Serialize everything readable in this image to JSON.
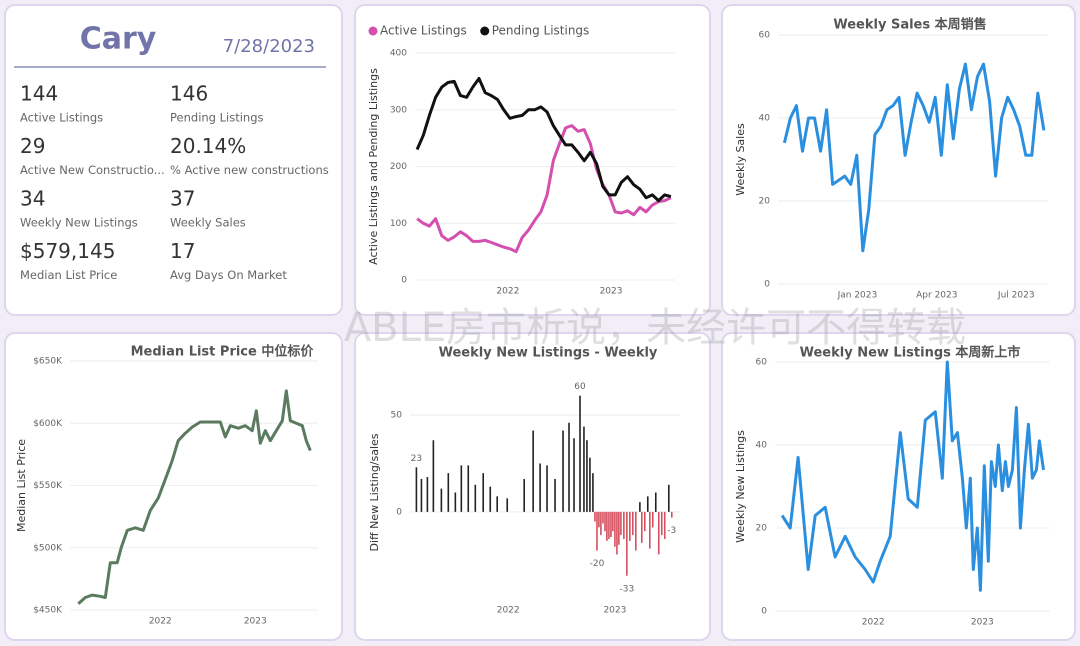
{
  "kpi": {
    "city": "Cary",
    "date": "7/28/2023",
    "items": [
      {
        "value": "144",
        "label": "Active Listings"
      },
      {
        "value": "146",
        "label": "Pending Listings"
      },
      {
        "value": "29",
        "label": "Active New Constructio..."
      },
      {
        "value": "20.14%",
        "label": "% Active new constructions"
      },
      {
        "value": "34",
        "label": "Weekly New Listings"
      },
      {
        "value": "37",
        "label": "Weekly Sales"
      },
      {
        "value": "$579,145",
        "label": "Median List Price"
      },
      {
        "value": "17",
        "label": "Avg Days On Market"
      }
    ]
  },
  "watermark": "ABLE房市析说，未经许可不得转载",
  "chart_data": [
    {
      "type": "line",
      "ylabel": "Active Listings and Pending Listings",
      "legend": "top",
      "grid": true,
      "x": [
        2021.12,
        2021.18,
        2021.24,
        2021.3,
        2021.36,
        2021.42,
        2021.48,
        2021.54,
        2021.6,
        2021.66,
        2021.72,
        2021.78,
        2021.84,
        2021.9,
        2021.96,
        2022.02,
        2022.08,
        2022.14,
        2022.2,
        2022.26,
        2022.32,
        2022.38,
        2022.44,
        2022.5,
        2022.56,
        2022.62,
        2022.68,
        2022.74,
        2022.8,
        2022.86,
        2022.92,
        2022.98,
        2023.04,
        2023.1,
        2023.16,
        2023.22,
        2023.28,
        2023.34,
        2023.4,
        2023.46,
        2023.52,
        2023.58
      ],
      "series": [
        {
          "name": "Active Listings",
          "color": "#d44fae",
          "values": [
            108,
            100,
            95,
            108,
            78,
            70,
            76,
            85,
            78,
            68,
            68,
            70,
            66,
            62,
            58,
            55,
            50,
            75,
            88,
            105,
            120,
            150,
            210,
            240,
            268,
            272,
            262,
            265,
            240,
            195,
            168,
            150,
            120,
            118,
            122,
            115,
            128,
            120,
            132,
            138,
            140,
            145
          ]
        },
        {
          "name": "Pending Listings",
          "color": "#111111",
          "values": [
            230,
            255,
            290,
            322,
            340,
            348,
            350,
            325,
            322,
            340,
            355,
            330,
            325,
            318,
            300,
            285,
            288,
            290,
            300,
            300,
            305,
            296,
            272,
            255,
            238,
            238,
            225,
            210,
            225,
            205,
            165,
            150,
            150,
            172,
            182,
            168,
            160,
            145,
            150,
            140,
            150,
            147
          ]
        }
      ],
      "xlim": [
        2021.1,
        2023.62
      ],
      "xticks": [
        2022,
        2023
      ],
      "ylim": [
        0,
        400
      ],
      "yticks": [
        0,
        100,
        200,
        300,
        400
      ]
    },
    {
      "type": "line",
      "title": "Weekly Sales 本周销售",
      "ylabel": "Weekly Sales",
      "color": "#2b8fe0",
      "grid": true,
      "x": [
        2022.77,
        2022.789,
        2022.808,
        2022.827,
        2022.846,
        2022.865,
        2022.884,
        2022.903,
        2022.922,
        2022.941,
        2022.96,
        2022.979,
        2022.998,
        2023.017,
        2023.036,
        2023.055,
        2023.074,
        2023.093,
        2023.112,
        2023.131,
        2023.15,
        2023.169,
        2023.188,
        2023.207,
        2023.226,
        2023.245,
        2023.264,
        2023.283,
        2023.302,
        2023.321,
        2023.34,
        2023.359,
        2023.378,
        2023.397,
        2023.416,
        2023.435,
        2023.454,
        2023.473,
        2023.492,
        2023.511,
        2023.53,
        2023.549,
        2023.568,
        2023.587
      ],
      "values": [
        34,
        40,
        43,
        32,
        40,
        40,
        32,
        42,
        24,
        25,
        26,
        24,
        31,
        8,
        18,
        36,
        38,
        42,
        43,
        45,
        31,
        39,
        46,
        43,
        39,
        45,
        31,
        48,
        35,
        47,
        53,
        42,
        50,
        53,
        44,
        26,
        40,
        45,
        42,
        38,
        31,
        31,
        46,
        37
      ],
      "xlim": [
        2022.75,
        2023.6
      ],
      "xticks": [
        {
          "value": 2023,
          "label": "Jan 2023"
        },
        {
          "value": 2023.25,
          "label": "Apr 2023"
        },
        {
          "value": 2023.5,
          "label": "Jul 2023"
        }
      ],
      "ylim": [
        0,
        60
      ],
      "yticks": [
        0,
        20,
        40,
        60
      ]
    },
    {
      "type": "line",
      "title": "Median List Price  中位标价",
      "ylabel": "Median List Price",
      "color": "#5b7b60",
      "grid": true,
      "x": [
        2021.137,
        2021.211,
        2021.284,
        2021.368,
        2021.421,
        2021.474,
        2021.547,
        2021.589,
        2021.653,
        2021.737,
        2021.821,
        2021.895,
        2021.979,
        2022.053,
        2022.126,
        2022.189,
        2022.263,
        2022.337,
        2022.421,
        2022.526,
        2022.632,
        2022.684,
        2022.737,
        2022.821,
        2022.895,
        2022.968,
        2023.011,
        2023.053,
        2023.105,
        2023.158,
        2023.221,
        2023.284,
        2023.326,
        2023.368,
        2023.432,
        2023.495,
        2023.537,
        2023.579
      ],
      "values": [
        455000,
        460000,
        462000,
        461000,
        460000,
        488000,
        488000,
        500000,
        514000,
        516000,
        514000,
        530000,
        540000,
        555000,
        570000,
        586000,
        592000,
        597000,
        601000,
        601000,
        601000,
        589000,
        598000,
        596000,
        598000,
        594000,
        610000,
        584000,
        594000,
        586000,
        594000,
        602000,
        626000,
        602000,
        600000,
        598000,
        586000,
        578000
      ],
      "xlim": [
        2021.05,
        2023.66
      ],
      "xticks": [
        2022,
        2023
      ],
      "ylim": [
        450000,
        650000
      ],
      "yticks": [
        {
          "value": 450000,
          "label": "$450K"
        },
        {
          "value": 500000,
          "label": "$500K"
        },
        {
          "value": 550000,
          "label": "$550K"
        },
        {
          "value": 600000,
          "label": "$600K"
        },
        {
          "value": 650000,
          "label": "$650K"
        }
      ]
    },
    {
      "type": "bar",
      "title": "Weekly New Listings - Weekly",
      "ylabel": "Diff New Listing/sales",
      "color": "#222222",
      "negative_color": "#d4505e",
      "grid": true,
      "x": [
        2021.14,
        2021.187,
        2021.243,
        2021.299,
        2021.374,
        2021.439,
        2021.505,
        2021.561,
        2021.626,
        2021.692,
        2021.766,
        2021.832,
        2021.897,
        2021.991,
        2022.15,
        2022.234,
        2022.299,
        2022.364,
        2022.439,
        2022.514,
        2022.57,
        2022.617,
        2022.673,
        2022.71,
        2022.738,
        2022.766,
        2022.794,
        2022.813,
        2022.832,
        2022.85,
        2022.869,
        2022.888,
        2022.907,
        2022.925,
        2022.944,
        2022.963,
        2022.981,
        2023.0,
        2023.019,
        2023.037,
        2023.056,
        2023.084,
        2023.112,
        2023.14,
        2023.168,
        2023.196,
        2023.234,
        2023.252,
        2023.28,
        2023.308,
        2023.327,
        2023.355,
        2023.383,
        2023.411,
        2023.439,
        2023.467,
        2023.505,
        2023.533
      ],
      "values": [
        23,
        17,
        18,
        37,
        12,
        20,
        10,
        24,
        24,
        14,
        20,
        13,
        8,
        7,
        17,
        42,
        25,
        24,
        17,
        42,
        46,
        38,
        60,
        44,
        37,
        28,
        20,
        -5,
        -20,
        -8,
        -12,
        -6,
        -10,
        -15,
        -14,
        -13,
        -10,
        -18,
        -22,
        -17,
        -12,
        -14,
        -33,
        -15,
        -12,
        -20,
        5,
        -16,
        -10,
        8,
        -19,
        -8,
        10,
        -22,
        -12,
        -14,
        14,
        -3
      ],
      "labeled": [
        0,
        22,
        28,
        42,
        57
      ],
      "xlim": [
        2021.08,
        2023.61
      ],
      "xticks": [
        2022,
        2023
      ],
      "ylim": [
        -45,
        65
      ],
      "yticks": [
        0,
        50
      ]
    },
    {
      "type": "line",
      "title": "Weekly New Listings  本周新上市",
      "ylabel": "Weekly New Listings",
      "color": "#2b8fe0",
      "grid": true,
      "x": [
        2021.165,
        2021.239,
        2021.312,
        2021.404,
        2021.468,
        2021.56,
        2021.651,
        2021.743,
        2021.835,
        2021.927,
        2022.0,
        2022.064,
        2022.156,
        2022.248,
        2022.321,
        2022.404,
        2022.477,
        2022.569,
        2022.633,
        2022.679,
        2022.725,
        2022.771,
        2022.817,
        2022.853,
        2022.89,
        2022.917,
        2022.954,
        2022.982,
        2023.018,
        2023.055,
        2023.083,
        2023.119,
        2023.147,
        2023.183,
        2023.211,
        2023.239,
        2023.275,
        2023.312,
        2023.349,
        2023.385,
        2023.422,
        2023.459,
        2023.495,
        2023.523,
        2023.56
      ],
      "values": [
        23,
        20,
        37,
        10,
        23,
        25,
        13,
        18,
        13,
        10,
        7,
        12,
        18,
        43,
        27,
        25,
        46,
        48,
        32,
        60,
        41,
        43,
        32,
        20,
        32,
        10,
        20,
        5,
        35,
        12,
        36,
        30,
        40,
        29,
        36,
        30,
        34,
        49,
        20,
        34,
        45,
        32,
        34,
        41,
        34
      ],
      "xlim": [
        2021.1,
        2023.62
      ],
      "xticks": [
        2022,
        2023
      ],
      "ylim": [
        0,
        60
      ],
      "yticks": [
        0,
        20,
        40,
        60
      ]
    }
  ]
}
